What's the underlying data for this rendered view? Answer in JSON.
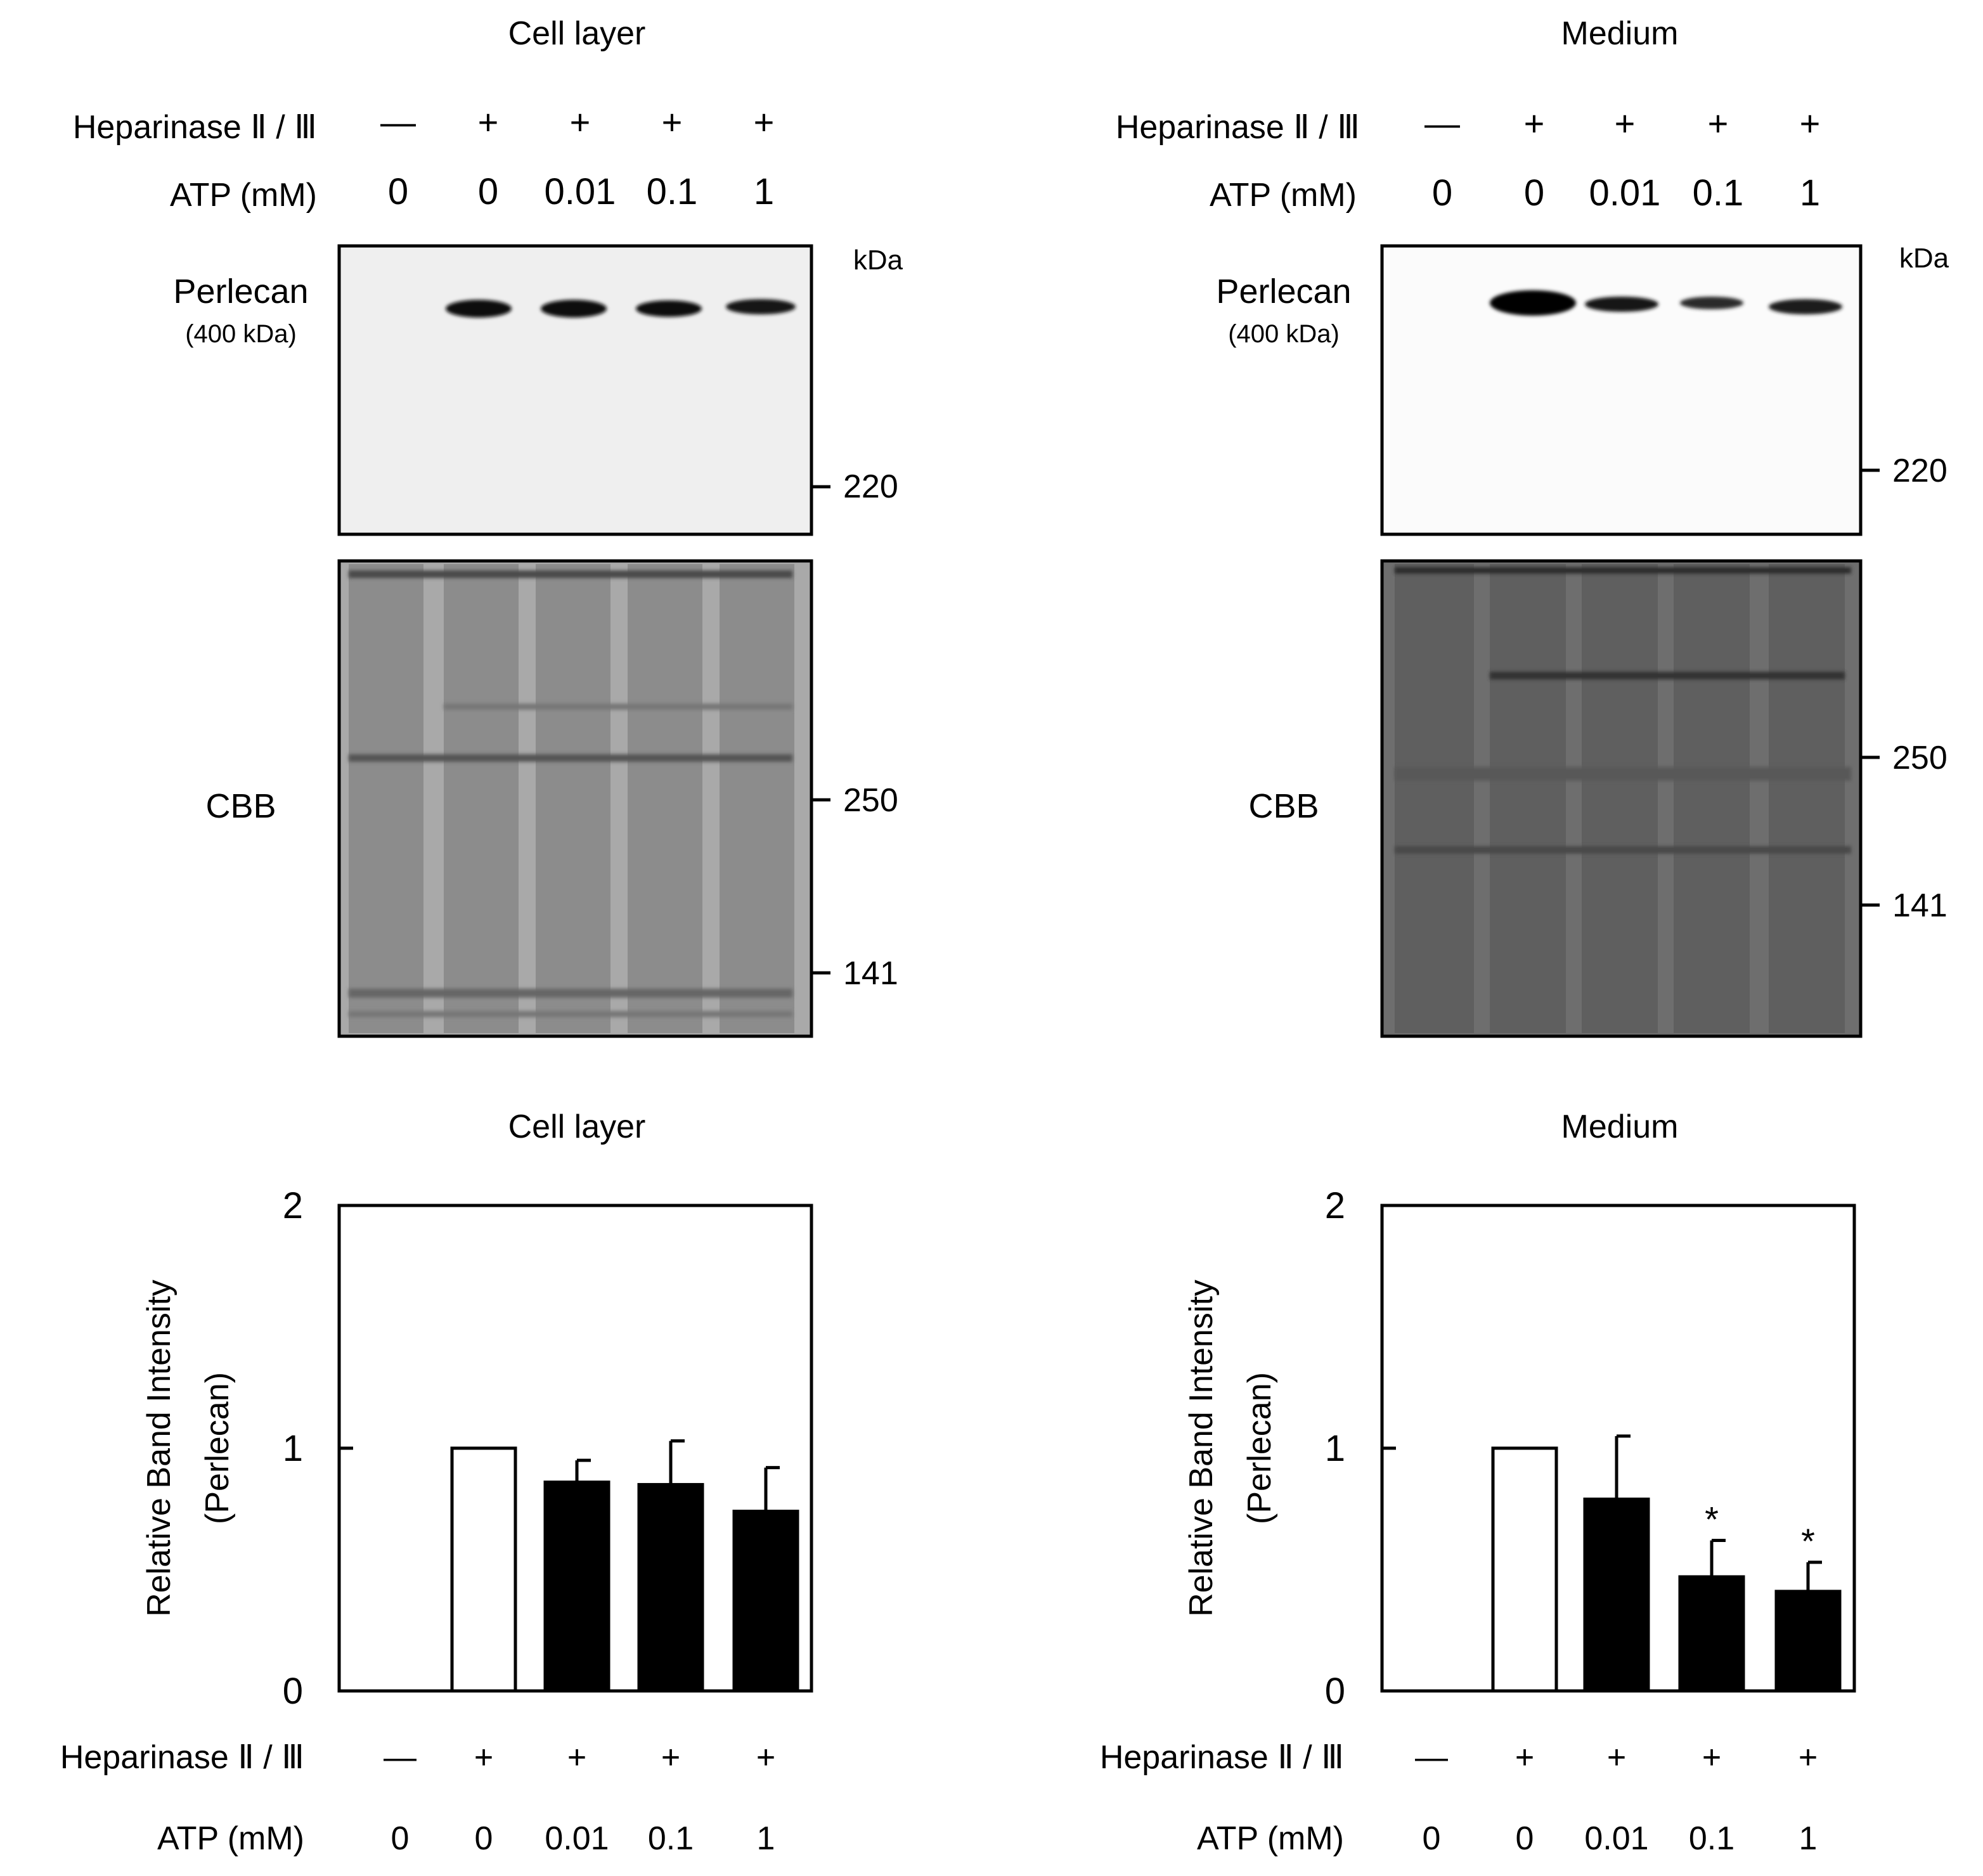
{
  "figure": {
    "left": {
      "title": "Cell layer",
      "row_labels": {
        "heparinase": "Heparinase Ⅱ / Ⅲ",
        "atp": "ATP (mM)"
      },
      "heparinase": [
        "—",
        "+",
        "+",
        "+",
        "+"
      ],
      "atp": [
        "0",
        "0",
        "0.01",
        "0.1",
        "1"
      ],
      "blot_label": "Perlecan",
      "blot_sublabel": "(400 kDa)",
      "kda_label": "kDa",
      "blot_markers": [
        "220"
      ],
      "cbb_label": "CBB",
      "cbb_markers": [
        "250",
        "141"
      ]
    },
    "right": {
      "title": "Medium",
      "row_labels": {
        "heparinase": "Heparinase Ⅱ / Ⅲ",
        "atp": "ATP (mM)"
      },
      "heparinase": [
        "—",
        "+",
        "+",
        "+",
        "+"
      ],
      "atp": [
        "0",
        "0",
        "0.01",
        "0.1",
        "1"
      ],
      "blot_label": "Perlecan",
      "blot_sublabel": "(400 kDa)",
      "kda_label": "kDa",
      "blot_markers": [
        "220"
      ],
      "cbb_label": "CBB",
      "cbb_markers": [
        "250",
        "141"
      ]
    }
  },
  "chart_data": [
    {
      "type": "bar",
      "title": "Cell layer",
      "ylabel": "Relative Band Intensity (Perlecan)",
      "ylabel_lines": [
        "Relative Band Intensity",
        "(Perlecan)"
      ],
      "ylim": [
        0,
        2
      ],
      "yticks": [
        "0",
        "1",
        "2"
      ],
      "row_labels": {
        "heparinase": "Heparinase Ⅱ / Ⅲ",
        "atp": "ATP (mM)"
      },
      "categories": [
        "—|0",
        "+|0",
        "+|0.01",
        "+|0.1",
        "+|1"
      ],
      "heparinase": [
        "—",
        "+",
        "+",
        "+",
        "+"
      ],
      "atp": [
        "0",
        "0",
        "0.01",
        "0.1",
        "1"
      ],
      "values": [
        0,
        1.0,
        0.86,
        0.85,
        0.74
      ],
      "errors": [
        0,
        0,
        0.09,
        0.18,
        0.18
      ],
      "bar_fill": [
        "none",
        "white",
        "black",
        "black",
        "black"
      ],
      "significance": [
        "",
        "",
        "",
        "",
        ""
      ],
      "grid": false
    },
    {
      "type": "bar",
      "title": "Medium",
      "ylabel": "Relative Band Intensity (Perlecan)",
      "ylabel_lines": [
        "Relative Band Intensity",
        "(Perlecan)"
      ],
      "ylim": [
        0,
        2
      ],
      "yticks": [
        "0",
        "1",
        "2"
      ],
      "row_labels": {
        "heparinase": "Heparinase Ⅱ / Ⅲ",
        "atp": "ATP (mM)"
      },
      "categories": [
        "—|0",
        "+|0",
        "+|0.01",
        "+|0.1",
        "+|1"
      ],
      "heparinase": [
        "—",
        "+",
        "+",
        "+",
        "+"
      ],
      "atp": [
        "0",
        "0",
        "0.01",
        "0.1",
        "1"
      ],
      "values": [
        0,
        1.0,
        0.79,
        0.47,
        0.41
      ],
      "errors": [
        0,
        0,
        0.26,
        0.15,
        0.12
      ],
      "bar_fill": [
        "none",
        "white",
        "black",
        "black",
        "black"
      ],
      "significance": [
        "",
        "",
        "",
        "*",
        "*"
      ],
      "grid": false
    }
  ]
}
